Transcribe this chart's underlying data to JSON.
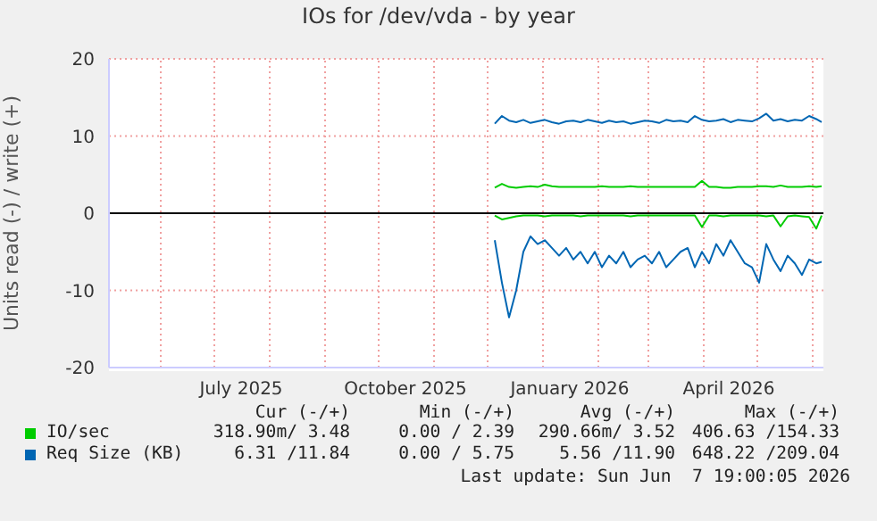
{
  "chart_data": {
    "type": "line",
    "title": "IOs for /dev/vda - by year",
    "ylabel": "Units read (-) / write (+)",
    "xlim": [
      "2025-05-03",
      "2026-06-07"
    ],
    "xticks": [
      {
        "value": "2025-06-01",
        "label": null
      },
      {
        "value": "2025-07-01",
        "label": null
      },
      {
        "value": "2025-07-16",
        "label": "July 2025"
      },
      {
        "value": "2025-08-01",
        "label": null
      },
      {
        "value": "2025-09-01",
        "label": null
      },
      {
        "value": "2025-10-01",
        "label": null
      },
      {
        "value": "2025-10-16",
        "label": "October 2025"
      },
      {
        "value": "2025-11-01",
        "label": null
      },
      {
        "value": "2025-12-01",
        "label": null
      },
      {
        "value": "2026-01-01",
        "label": null
      },
      {
        "value": "2026-01-16",
        "label": "January 2026"
      },
      {
        "value": "2026-02-01",
        "label": null
      },
      {
        "value": "2026-03-01",
        "label": null
      },
      {
        "value": "2026-04-01",
        "label": null
      },
      {
        "value": "2026-04-15",
        "label": "April 2026"
      },
      {
        "value": "2026-05-01",
        "label": null
      },
      {
        "value": "2026-06-01",
        "label": null
      }
    ],
    "ylim": [
      -20,
      20
    ],
    "yticks": [
      -20,
      -10,
      0,
      10,
      20
    ],
    "grid": true,
    "legend": "bottom",
    "x": [
      "2025-12-05",
      "2025-12-09",
      "2025-12-13",
      "2025-12-17",
      "2025-12-21",
      "2025-12-25",
      "2025-12-29",
      "2026-01-02",
      "2026-01-06",
      "2026-01-10",
      "2026-01-14",
      "2026-01-18",
      "2026-01-22",
      "2026-01-26",
      "2026-01-30",
      "2026-02-03",
      "2026-02-07",
      "2026-02-11",
      "2026-02-15",
      "2026-02-19",
      "2026-02-23",
      "2026-02-27",
      "2026-03-03",
      "2026-03-07",
      "2026-03-11",
      "2026-03-15",
      "2026-03-19",
      "2026-03-23",
      "2026-03-27",
      "2026-03-31",
      "2026-04-04",
      "2026-04-08",
      "2026-04-12",
      "2026-04-16",
      "2026-04-20",
      "2026-04-24",
      "2026-04-28",
      "2026-05-02",
      "2026-05-06",
      "2026-05-10",
      "2026-05-14",
      "2026-05-18",
      "2026-05-22",
      "2026-05-26",
      "2026-05-30",
      "2026-06-03",
      "2026-06-06"
    ],
    "series": [
      {
        "name": "IO/sec",
        "color": "#00cc00",
        "values": [
          3.3,
          3.8,
          3.4,
          3.3,
          3.4,
          3.5,
          3.4,
          3.7,
          3.5,
          3.4,
          3.4,
          3.4,
          3.4,
          3.4,
          3.4,
          3.5,
          3.4,
          3.4,
          3.4,
          3.5,
          3.4,
          3.4,
          3.4,
          3.4,
          3.4,
          3.4,
          3.4,
          3.4,
          3.4,
          4.2,
          3.4,
          3.4,
          3.3,
          3.3,
          3.4,
          3.4,
          3.4,
          3.5,
          3.5,
          3.4,
          3.6,
          3.4,
          3.4,
          3.4,
          3.5,
          3.4,
          3.5
        ]
      },
      {
        "color": "#00cc00",
        "values": [
          -0.3,
          -0.8,
          -0.6,
          -0.4,
          -0.3,
          -0.3,
          -0.3,
          -0.4,
          -0.3,
          -0.3,
          -0.3,
          -0.3,
          -0.4,
          -0.3,
          -0.3,
          -0.3,
          -0.3,
          -0.3,
          -0.3,
          -0.4,
          -0.3,
          -0.3,
          -0.3,
          -0.3,
          -0.3,
          -0.3,
          -0.3,
          -0.3,
          -0.3,
          -1.8,
          -0.3,
          -0.3,
          -0.4,
          -0.3,
          -0.3,
          -0.3,
          -0.3,
          -0.3,
          -0.4,
          -0.3,
          -1.7,
          -0.4,
          -0.3,
          -0.4,
          -0.5,
          -2.0,
          -0.3
        ]
      },
      {
        "name": "Req Size (KB)",
        "color": "#0066b3",
        "values": [
          11.6,
          12.6,
          12.0,
          11.8,
          12.1,
          11.7,
          11.9,
          12.1,
          11.8,
          11.6,
          11.9,
          12.0,
          11.8,
          12.1,
          11.9,
          11.7,
          12.0,
          11.8,
          11.9,
          11.6,
          11.8,
          12.0,
          11.9,
          11.7,
          12.1,
          11.9,
          12.0,
          11.8,
          12.6,
          12.1,
          11.9,
          12.0,
          12.2,
          11.8,
          12.1,
          12.0,
          11.9,
          12.3,
          12.9,
          12.0,
          12.2,
          11.9,
          12.1,
          12.0,
          12.6,
          12.2,
          11.8
        ]
      },
      {
        "color": "#0066b3",
        "values": [
          -3.5,
          -9,
          -13.5,
          -10,
          -5,
          -3,
          -4,
          -3.5,
          -4.5,
          -5.5,
          -4.5,
          -6,
          -5,
          -6.5,
          -5,
          -7,
          -5.5,
          -6.5,
          -5,
          -7,
          -6,
          -5.5,
          -6.5,
          -5,
          -7,
          -6,
          -5,
          -4.5,
          -7,
          -5,
          -6.5,
          -4,
          -5.5,
          -3.5,
          -5,
          -6.5,
          -7,
          -9,
          -4,
          -6,
          -7.5,
          -5.5,
          -6.5,
          -8,
          -6,
          -6.5,
          -6.3
        ]
      }
    ],
    "ref_lines": [
      {
        "axis": "y",
        "value": 0,
        "color": "#000000"
      }
    ],
    "annotations": [
      "Cur (-/+)",
      "Min (-/+)",
      "Avg (-/+)",
      "Max (-/+)",
      "318.90m/ 3.48",
      "0.00 / 2.39",
      "290.66m/ 3.52",
      "406.63 /154.33",
      "6.31 /11.84",
      "0.00 / 5.75",
      "5.56 /11.90",
      "648.22 /209.04",
      "Last update: Sun Jun  7 19:00:05 2026"
    ]
  }
}
